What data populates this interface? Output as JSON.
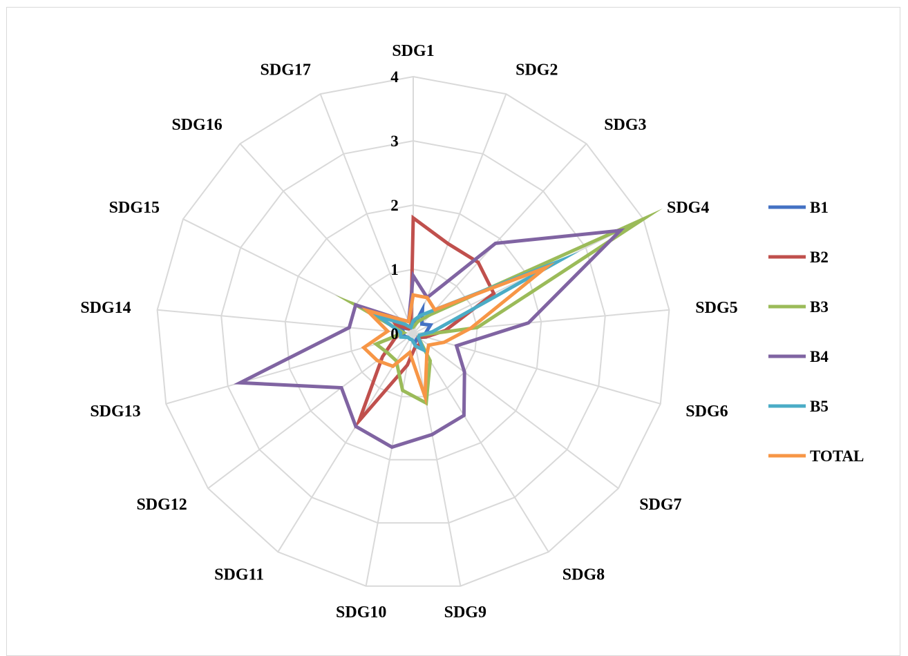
{
  "chart_data": {
    "type": "radar",
    "categories": [
      "SDG1",
      "SDG2",
      "SDG3",
      "SDG4",
      "SDG5",
      "SDG6",
      "SDG7",
      "SDG8",
      "SDG9",
      "SDG10",
      "SDG11",
      "SDG12",
      "SDG13",
      "SDG14",
      "SDG15",
      "SDG16",
      "SDG17"
    ],
    "rlim": [
      0,
      4
    ],
    "ticks": [
      "0",
      "1",
      "2",
      "3",
      "4"
    ],
    "grid": true,
    "legend_position": "right",
    "series": [
      {
        "name": "B1",
        "color": "#4472c4",
        "values": [
          0.1,
          0.4,
          0.2,
          0.3,
          0.2,
          0.2,
          0.1,
          0.1,
          0.15,
          0.1,
          0.1,
          0.1,
          0.15,
          0.15,
          0.2,
          0.1,
          0.1
        ]
      },
      {
        "name": "B2",
        "color": "#c0504d",
        "values": [
          1.8,
          1.5,
          1.5,
          1.4,
          0.5,
          0.2,
          0.1,
          0.2,
          0.2,
          0.5,
          1.6,
          0.6,
          0.3,
          0.2,
          0.3,
          0.1,
          0.1
        ]
      },
      {
        "name": "B3",
        "color": "#9bbb59",
        "values": [
          0.1,
          0.2,
          0.4,
          4.0,
          1.0,
          0.1,
          0.1,
          0.5,
          1.1,
          0.9,
          0.5,
          0.5,
          0.6,
          0.15,
          1.0,
          0.2,
          0.1
        ]
      },
      {
        "name": "B4",
        "color": "#8064a2",
        "values": [
          0.9,
          0.6,
          1.9,
          3.6,
          1.8,
          0.7,
          1.0,
          1.5,
          1.6,
          1.8,
          1.7,
          1.4,
          2.8,
          1.0,
          1.0,
          0.3,
          0.2
        ]
      },
      {
        "name": "B5",
        "color": "#4bacc6",
        "values": [
          0.2,
          0.3,
          0.5,
          2.5,
          0.3,
          0.1,
          0.1,
          0.3,
          0.2,
          0.1,
          0.1,
          0.1,
          0.2,
          0.2,
          0.6,
          0.2,
          0.1
        ]
      },
      {
        "name": "TOTAL",
        "color": "#f79646",
        "values": [
          0.6,
          0.6,
          0.5,
          2.3,
          0.9,
          0.5,
          0.3,
          0.4,
          1.0,
          0.3,
          0.6,
          0.7,
          0.8,
          0.4,
          0.8,
          0.3,
          0.2
        ]
      }
    ]
  }
}
